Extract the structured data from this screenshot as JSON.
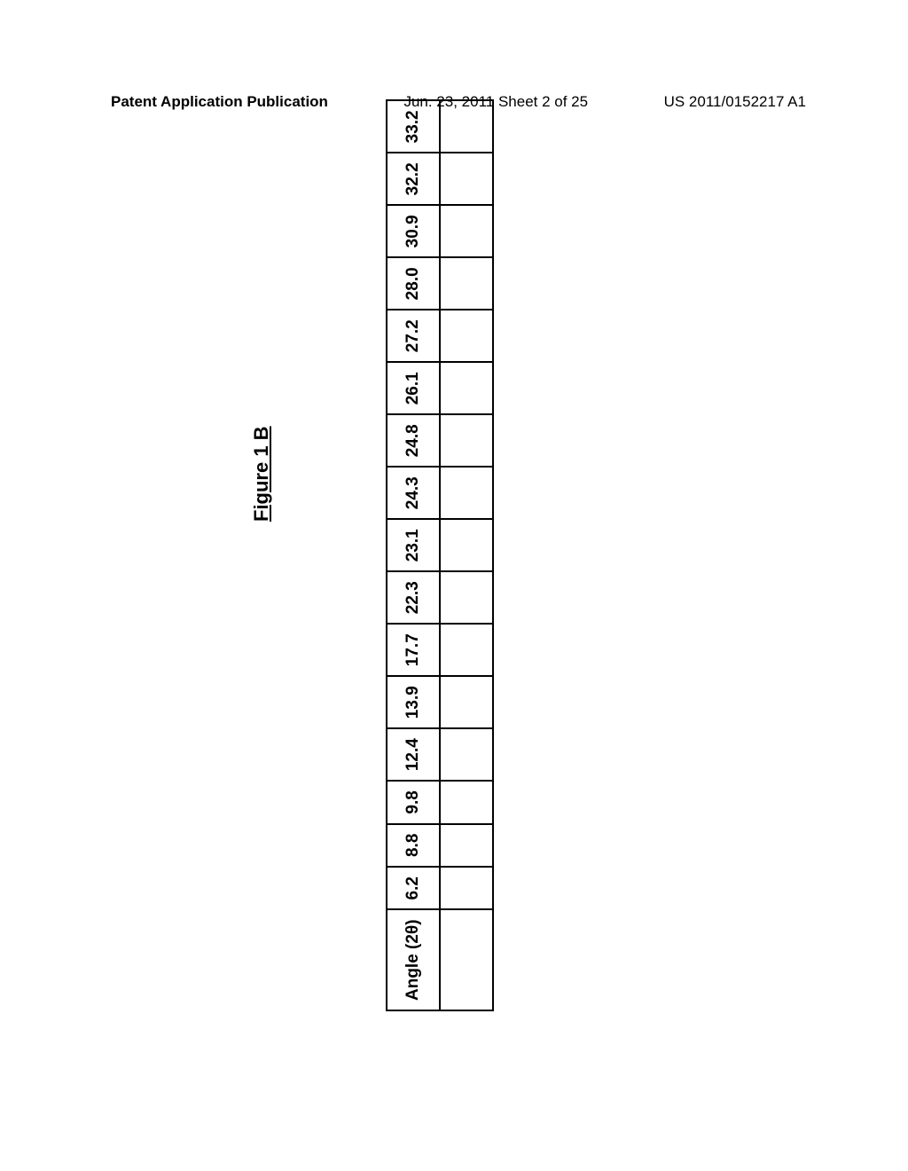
{
  "header": {
    "left": "Patent Application Publication",
    "center": "Jun. 23, 2011  Sheet 2 of 25",
    "right": "US 2011/0152217 A1"
  },
  "figure": {
    "label": "Figure 1 B"
  },
  "table": {
    "type": "table",
    "row_label": "Angle (2θ)",
    "values": [
      "6.2",
      "8.8",
      "9.8",
      "12.4",
      "13.9",
      "17.7",
      "22.3",
      "23.1",
      "24.3",
      "24.8",
      "26.1",
      "27.2",
      "28.0",
      "30.9",
      "32.2",
      "33.2"
    ],
    "border_color": "#000000",
    "background_color": "#ffffff",
    "text_color": "#000000",
    "font_size": 19,
    "font_weight": "bold",
    "cell_padding": 14,
    "border_width": 2
  }
}
